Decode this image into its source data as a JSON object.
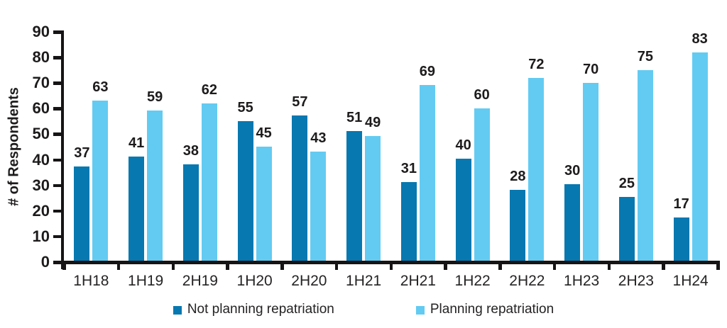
{
  "chart_data": {
    "type": "bar",
    "title": "",
    "xlabel": "",
    "ylabel": "# of Respondents",
    "ylim": [
      0,
      90
    ],
    "ytick_step": 10,
    "grid": false,
    "legend_position": "bottom",
    "value_labels": true,
    "categories": [
      "1H18",
      "1H19",
      "2H19",
      "1H20",
      "2H20",
      "1H21",
      "2H21",
      "1H22",
      "2H22",
      "1H23",
      "2H23",
      "1H24"
    ],
    "series": [
      {
        "name": "Not planning repatriation",
        "color": "#0778b0",
        "values": [
          37,
          41,
          38,
          55,
          57,
          51,
          31,
          40,
          28,
          30,
          25,
          17
        ]
      },
      {
        "name": "Planning repatriation",
        "color": "#63cbf2",
        "values": [
          63,
          59,
          62,
          45,
          43,
          49,
          69,
          60,
          72,
          70,
          75,
          83
        ]
      }
    ],
    "axis_color": "#161415",
    "label_color": "#1d1b1c"
  }
}
